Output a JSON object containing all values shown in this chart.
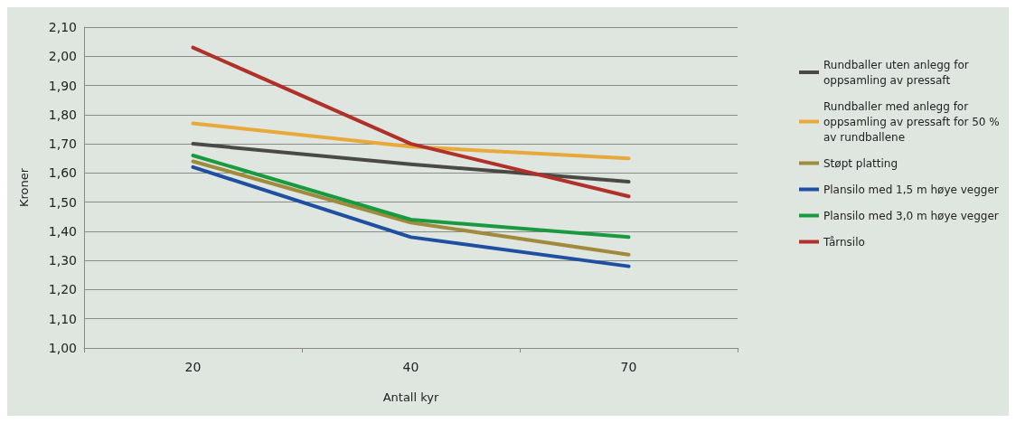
{
  "chart_data": {
    "type": "line",
    "xlabel": "Antall kyr",
    "ylabel": "Kroner",
    "categories": [
      "20",
      "40",
      "70"
    ],
    "ylim": [
      1.0,
      2.1
    ],
    "yticks": [
      {
        "value": 1.0,
        "label": "1,00"
      },
      {
        "value": 1.1,
        "label": "1,10"
      },
      {
        "value": 1.2,
        "label": "1,20"
      },
      {
        "value": 1.3,
        "label": "1,30"
      },
      {
        "value": 1.4,
        "label": "1,40"
      },
      {
        "value": 1.5,
        "label": "1,50"
      },
      {
        "value": 1.6,
        "label": "1,60"
      },
      {
        "value": 1.7,
        "label": "1,70"
      },
      {
        "value": 1.8,
        "label": "1,80"
      },
      {
        "value": 1.9,
        "label": "1,90"
      },
      {
        "value": 2.0,
        "label": "2,00"
      },
      {
        "value": 2.1,
        "label": "2,10"
      }
    ],
    "grid": "y",
    "legend": "right",
    "marker": "none",
    "line_style": "solid",
    "series": [
      {
        "name": "Rundballer uten anlegg for oppsamling av pressaft",
        "color": "#4a4a45",
        "values": [
          1.7,
          1.63,
          1.57
        ]
      },
      {
        "name": "Rundballer med anlegg for oppsamling av pressaft for 50 % av rundballene",
        "color": "#e8a83a",
        "values": [
          1.77,
          1.69,
          1.65
        ]
      },
      {
        "name": "Støpt platting",
        "color": "#a08a3c",
        "values": [
          1.64,
          1.43,
          1.32
        ]
      },
      {
        "name": "Plansilo med 1,5 m høye vegger",
        "color": "#1f4fa0",
        "values": [
          1.62,
          1.38,
          1.28
        ]
      },
      {
        "name": "Plansilo med 3,0 m høye vegger",
        "color": "#1a9a40",
        "values": [
          1.66,
          1.44,
          1.38
        ]
      },
      {
        "name": "Tårnsilo",
        "color": "#b0302a",
        "values": [
          2.03,
          1.7,
          1.52
        ]
      }
    ]
  }
}
